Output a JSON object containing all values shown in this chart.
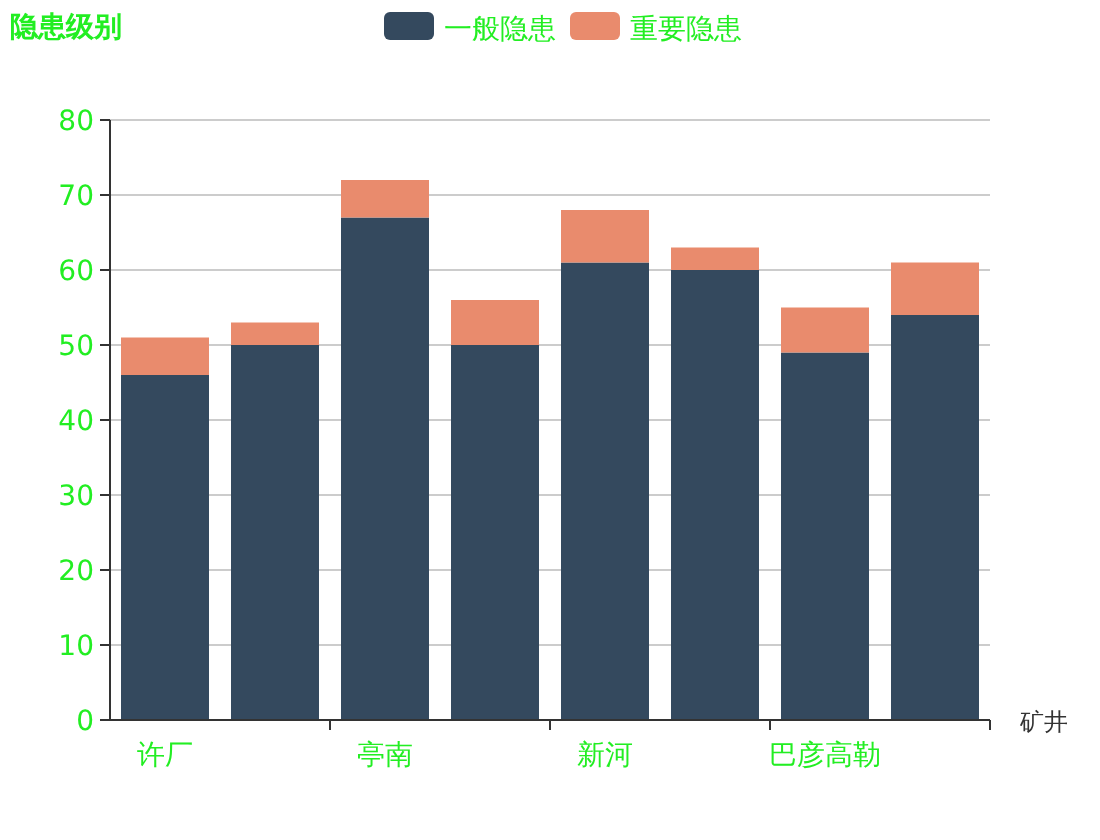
{
  "chart_data": {
    "type": "bar",
    "title": "隐患级别",
    "xlabel": "矿井",
    "stacked": true,
    "categories": [
      "许厂",
      null,
      "亭南",
      null,
      "新河",
      null,
      "巴彦高勒",
      null
    ],
    "series": [
      {
        "name": "一般隐患",
        "color": "#34495e",
        "values": [
          46,
          50,
          67,
          50,
          61,
          60,
          49,
          54
        ]
      },
      {
        "name": "重要隐患",
        "color": "#e98b6d",
        "values": [
          5,
          3,
          5,
          6,
          7,
          3,
          6,
          7
        ]
      }
    ],
    "ylim": [
      0,
      80
    ],
    "yticks": [
      0,
      10,
      20,
      30,
      40,
      50,
      60,
      70,
      80
    ],
    "grid": "y",
    "legend": "top"
  }
}
